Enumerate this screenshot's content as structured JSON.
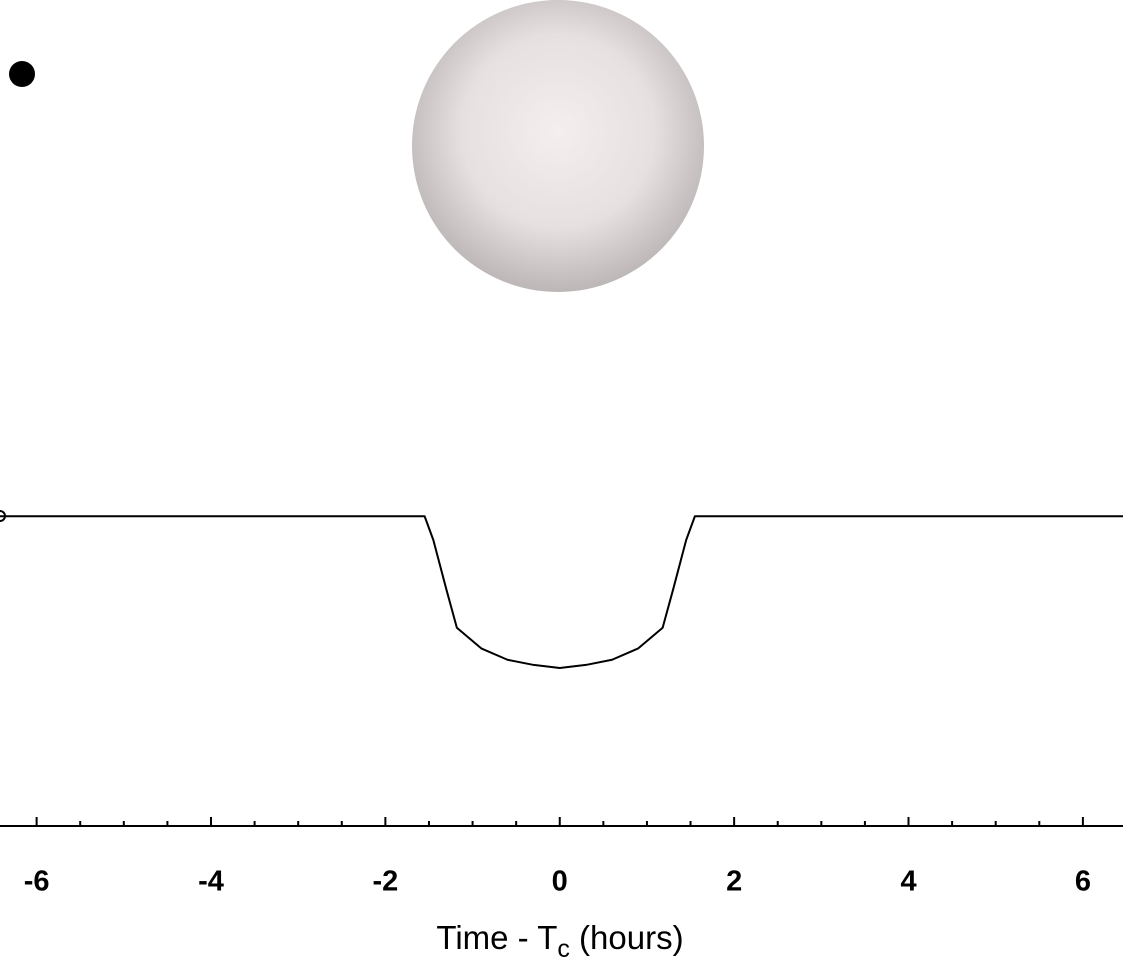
{
  "chart_data": {
    "type": "line",
    "x_label": {
      "text": "Time - T",
      "subscript": "c",
      "suffix": " (hours)"
    },
    "x": [
      -6.42,
      -1.55,
      -1.45,
      -1.3,
      -1.18,
      -0.9,
      -0.6,
      -0.3,
      0,
      0.3,
      0.6,
      0.9,
      1.18,
      1.3,
      1.45,
      1.55,
      6.46
    ],
    "series": [
      {
        "color": "#000000",
        "values": [
          1.0,
          1.0,
          0.9977,
          0.9929,
          0.9892,
          0.9872,
          0.9861,
          0.9856,
          0.9853,
          0.9856,
          0.9861,
          0.9872,
          0.9892,
          0.9929,
          0.9977,
          1.0,
          1.0
        ]
      }
    ],
    "xlim": [
      -6.42,
      6.46
    ],
    "ylim": [
      0.97,
      1.05
    ],
    "xticks": [
      -6,
      -4,
      -2,
      0,
      2,
      4,
      6
    ],
    "x_minor_ticks": [
      -5.5,
      -5,
      -4.5,
      -3.5,
      -3,
      -2.5,
      -1.5,
      -1,
      -0.5,
      0.5,
      1,
      1.5,
      2.5,
      3,
      3.5,
      4.5,
      5,
      5.5
    ]
  }
}
